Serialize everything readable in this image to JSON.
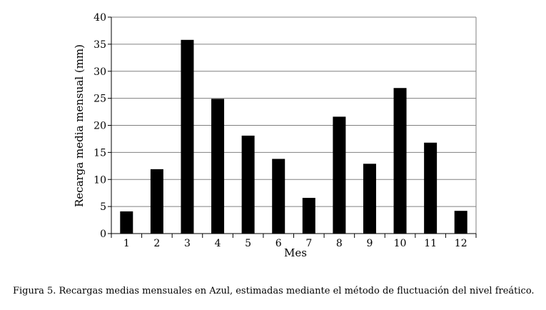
{
  "chart_data": {
    "type": "bar",
    "categories": [
      "1",
      "2",
      "3",
      "4",
      "5",
      "6",
      "7",
      "8",
      "9",
      "10",
      "11",
      "12"
    ],
    "values": [
      4.1,
      11.9,
      35.8,
      24.9,
      18.1,
      13.8,
      6.6,
      21.6,
      12.9,
      26.9,
      16.8,
      4.2
    ],
    "xlabel": "Mes",
    "ylabel": "Recarga media mensual (mm)",
    "ylim": [
      0,
      40
    ],
    "yticks": [
      0,
      5,
      10,
      15,
      20,
      25,
      30,
      35,
      40
    ],
    "grid": true,
    "bar_color": "#000000",
    "grid_color": "#808080"
  },
  "caption": "Figura 5. Recargas medias mensuales en Azul, estimadas mediante el método de fluctuación del nivel freático."
}
